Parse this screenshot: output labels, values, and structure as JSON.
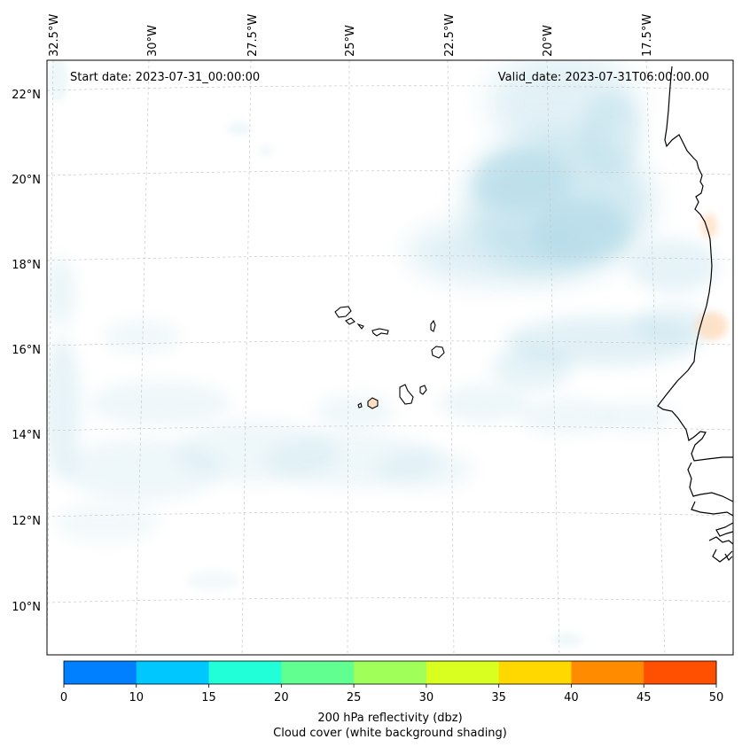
{
  "map": {
    "start_date": "Start date: 2023-07-31_00:00:00",
    "valid_date": "Valid_date: 2023-07-31T06:00:00.00",
    "lon_labels": [
      "32.5°W",
      "30°W",
      "27.5°W",
      "25°W",
      "22.5°W",
      "20°W",
      "17.5°W"
    ],
    "lat_labels": [
      "22°N",
      "20°N",
      "18°N",
      "16°N",
      "14°N",
      "12°N",
      "10°N"
    ],
    "extent": {
      "lon_min": -33,
      "lon_max": -15.8,
      "lat_min": 8.9,
      "lat_max": 22.8
    },
    "cloud_color": "#add8e6",
    "reflectivity_patch_color": "#ffdab9",
    "coastline_color": "#000000",
    "gridline_color": "#c8c8c8"
  },
  "colorbar": {
    "ticks": [
      "0",
      "10",
      "15",
      "20",
      "25",
      "30",
      "35",
      "40",
      "45",
      "50"
    ],
    "colors": [
      "#0080ff",
      "#00c8ff",
      "#20ffd8",
      "#60ff90",
      "#a0ff58",
      "#d8ff20",
      "#ffd800",
      "#ff8c00",
      "#ff4f00"
    ],
    "label_line1": "200 hPa reflectivity (dbz)",
    "label_line2": "Cloud cover (white background shading)"
  }
}
